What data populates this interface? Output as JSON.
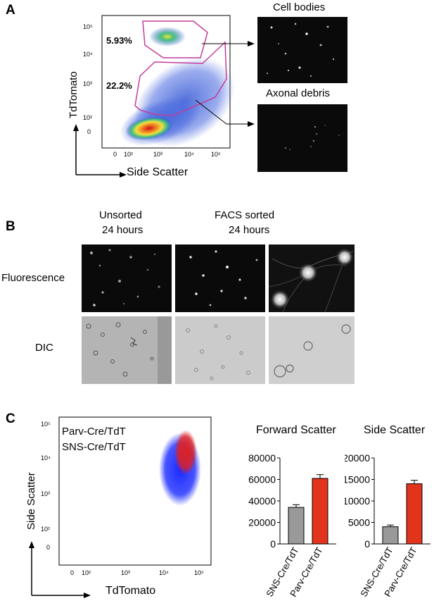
{
  "panelA": {
    "letter": "A",
    "y_axis_label": "TdTomato",
    "x_axis_label": "Side Scatter",
    "gate_upper_pct": "5.93%",
    "gate_lower_pct": "22.2%",
    "inset_top_title": "Cell bodies",
    "inset_bottom_title": "Axonal debris",
    "y_ticks": [
      "10⁵",
      "10⁴",
      "10³",
      "10²",
      "0"
    ],
    "x_ticks": [
      "0",
      "10²",
      "10³",
      "10⁴",
      "10⁵"
    ]
  },
  "panelB": {
    "letter": "B",
    "col1_title_line1": "Unsorted",
    "col1_title_line2": "24 hours",
    "col2_title_line1": "FACS sorted",
    "col2_title_line2": "24 hours",
    "row1_label": "Fluorescence",
    "row2_label": "DIC"
  },
  "panelC": {
    "letter": "C",
    "scatter_ylabel": "Side Scatter",
    "scatter_xlabel": "TdTomato",
    "legend_parv": "Parv-Cre/TdT",
    "legend_sns": "SNS-Cre/TdT",
    "y_ticks": [
      "10⁵",
      "10⁴",
      "10³",
      "10²",
      "0"
    ],
    "x_ticks": [
      "0",
      "10²",
      "10³",
      "10⁴",
      "10⁵"
    ],
    "colors": {
      "parv": "#e02020",
      "sns": "#1a2aff",
      "gray_bar": "#999999",
      "red_bar": "#e2341d"
    }
  },
  "chart_data": [
    {
      "type": "bar",
      "title": "Forward Scatter",
      "categories": [
        "SNS-Cre/TdT",
        "Parv-Cre/TdT"
      ],
      "values": [
        34000,
        61000
      ],
      "errors": [
        2500,
        3500
      ],
      "ylim": [
        0,
        80000
      ],
      "yticks": [
        0,
        20000,
        40000,
        60000,
        80000
      ],
      "ytick_labels": [
        "0",
        "20000",
        "40000",
        "60000",
        "80000"
      ]
    },
    {
      "type": "bar",
      "title": "Side Scatter",
      "categories": [
        "SNS-Cre/TdT",
        "Parv-Cre/TdT"
      ],
      "values": [
        4000,
        14000
      ],
      "errors": [
        400,
        800
      ],
      "ylim": [
        0,
        20000
      ],
      "yticks": [
        0,
        5000,
        10000,
        15000,
        20000
      ],
      "ytick_labels": [
        "0",
        "5000",
        "10000",
        "15000",
        "20000"
      ]
    }
  ]
}
